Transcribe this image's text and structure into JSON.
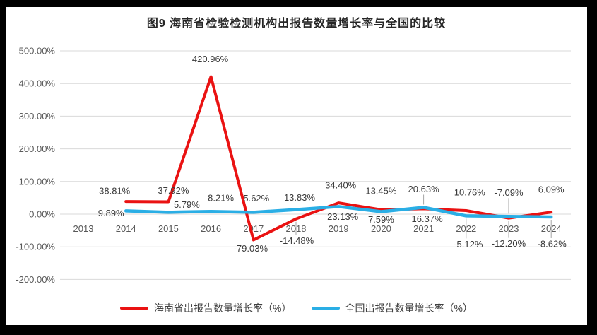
{
  "chart_data": {
    "type": "line",
    "title": "图9 海南省检验检测机构出报告数量增长率与全国的比较",
    "categories": [
      "2013",
      "2014",
      "2015",
      "2016",
      "2017",
      "2018",
      "2019",
      "2020",
      "2021",
      "2022",
      "2023",
      "2024"
    ],
    "series": [
      {
        "name": "海南省出报告数量增长率（%）",
        "color": "#ea1212",
        "values": [
          null,
          38.81,
          37.92,
          420.96,
          -79.03,
          -14.48,
          34.4,
          13.45,
          16.37,
          10.76,
          -12.2,
          6.09
        ]
      },
      {
        "name": "全国出报告数量增长率（%）",
        "color": "#2aaee5",
        "values": [
          null,
          9.89,
          5.79,
          8.21,
          5.62,
          13.83,
          23.13,
          7.59,
          20.63,
          -5.12,
          -7.09,
          -8.62
        ]
      }
    ],
    "y_axis": {
      "min": -200,
      "max": 500,
      "step": 100,
      "tick_format": "0.00%"
    },
    "ylim": [
      -200,
      500
    ],
    "grid": true,
    "legend_position": "bottom",
    "label_offsets": [
      [
        null,
        [
          -16,
          -15
        ],
        [
          7,
          -16
        ],
        [
          -1,
          -25
        ],
        [
          -4,
          12
        ],
        [
          1,
          31,
          "leader"
        ],
        [
          3,
          -25
        ],
        [
          0,
          -27
        ],
        [
          5,
          14
        ],
        [
          5,
          -26
        ],
        [
          0,
          36,
          "leader"
        ],
        [
          0,
          -32
        ]
      ],
      [
        null,
        [
          -21,
          3
        ],
        [
          26,
          -11
        ],
        [
          14,
          -19
        ],
        [
          4,
          -20
        ],
        [
          5,
          -17
        ],
        [
          6,
          14
        ],
        [
          0,
          11
        ],
        [
          0,
          -26,
          "leader"
        ],
        [
          3,
          40,
          "leader"
        ],
        [
          0,
          -34,
          "leader"
        ],
        [
          1,
          38,
          "leader"
        ]
      ]
    ]
  },
  "colors": {
    "grid": "#d9d9d9",
    "axis_text": "#595959",
    "label_text": "#3a3a3a",
    "leader": "#a6a6a6",
    "frame": "#000000",
    "background": "#ffffff"
  }
}
